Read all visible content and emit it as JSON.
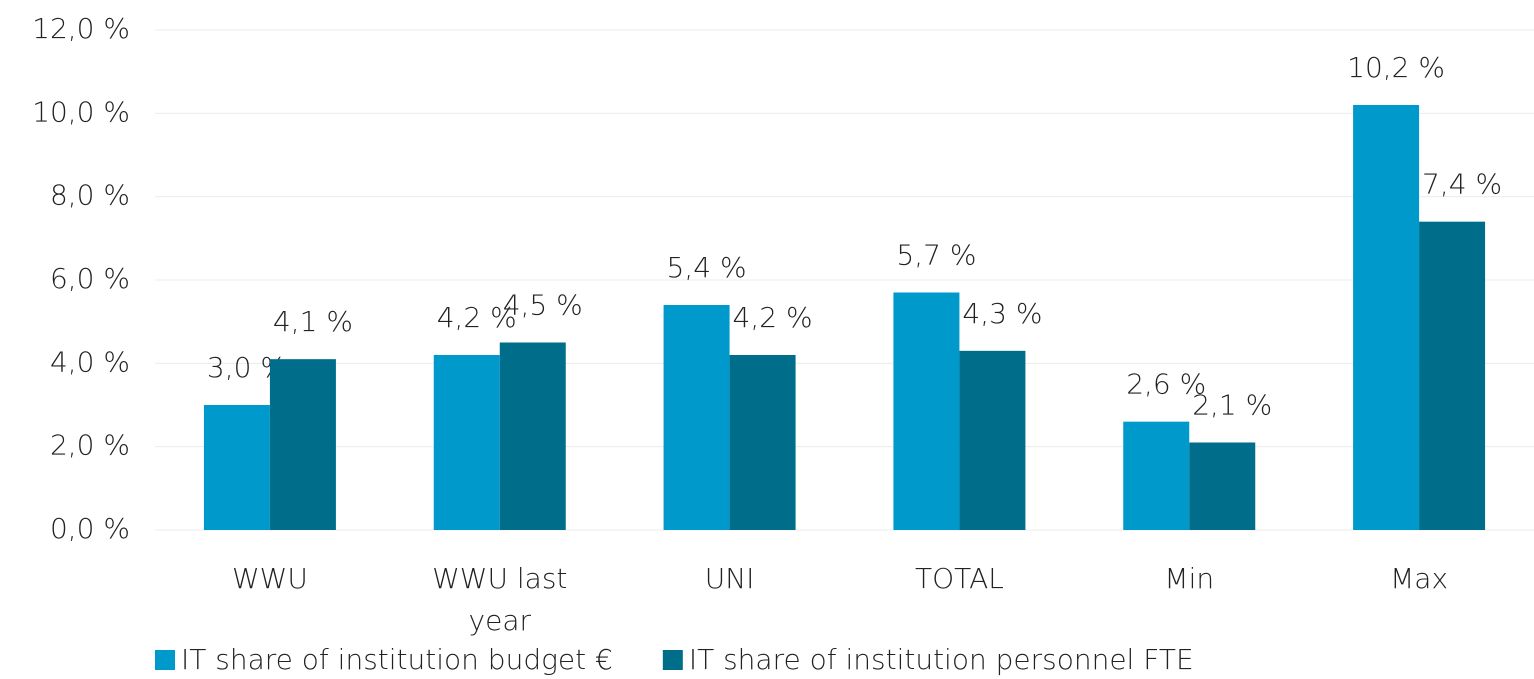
{
  "chart_data": {
    "type": "bar",
    "categories": [
      "WWU",
      "WWU last year",
      "UNI",
      "TOTAL",
      "Min",
      "Max"
    ],
    "series": [
      {
        "name": "IT share of institution budget €",
        "color": "#0099cc",
        "values": [
          3.0,
          4.2,
          5.4,
          5.7,
          2.6,
          10.2
        ],
        "value_labels": [
          "3,0 %",
          "4,2 %",
          "5,4 %",
          "5,7 %",
          "2,6 %",
          "10,2 %"
        ]
      },
      {
        "name": "IT share of institution personnel FTE",
        "color": "#006e8a",
        "values": [
          4.1,
          4.5,
          4.2,
          4.3,
          2.1,
          7.4
        ],
        "value_labels": [
          "4,1 %",
          "4,5 %",
          "4,2 %",
          "4,3 %",
          "2,1 %",
          "7,4 %"
        ]
      }
    ],
    "ylim": [
      0,
      12
    ],
    "yticks": [
      {
        "value": 0,
        "label": "0,0 %"
      },
      {
        "value": 2,
        "label": "2,0 %"
      },
      {
        "value": 4,
        "label": "4,0 %"
      },
      {
        "value": 6,
        "label": "6,0 %"
      },
      {
        "value": 8,
        "label": "8,0 %"
      },
      {
        "value": 10,
        "label": "10,0 %"
      },
      {
        "value": 12,
        "label": "12,0 %"
      }
    ],
    "grid": true
  }
}
